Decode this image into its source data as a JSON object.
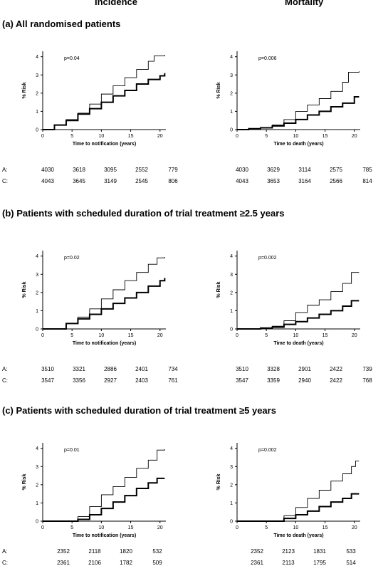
{
  "header": {
    "left": "Incidence",
    "right": "Mortality"
  },
  "sections": [
    {
      "label": "(a) All randomised patients"
    },
    {
      "label": "(b) Patients with scheduled duration of trial treatment ≥2.5 years"
    },
    {
      "label": "(c) Patients with scheduled duration of trial treatment ≥5 years"
    }
  ],
  "risk_labels": {
    "a": "A:",
    "c": "C:"
  },
  "risk_tables": [
    {
      "incidence": {
        "A": [
          "4030",
          "3618",
          "3095",
          "2552",
          "779"
        ],
        "C": [
          "4043",
          "3645",
          "3149",
          "2545",
          "806"
        ]
      },
      "mortality": {
        "A": [
          "4030",
          "3629",
          "3114",
          "2575",
          "785"
        ],
        "C": [
          "4043",
          "3653",
          "3164",
          "2566",
          "814"
        ]
      }
    },
    {
      "incidence": {
        "A": [
          "3510",
          "3321",
          "2886",
          "2401",
          "734"
        ],
        "C": [
          "3547",
          "3356",
          "2927",
          "2403",
          "761"
        ]
      },
      "mortality": {
        "A": [
          "3510",
          "3328",
          "2901",
          "2422",
          "739"
        ],
        "C": [
          "3547",
          "3359",
          "2940",
          "2422",
          "768"
        ]
      }
    },
    {
      "incidence": {
        "A": [
          "2352",
          "2118",
          "1820",
          "532"
        ],
        "C": [
          "2361",
          "2106",
          "1782",
          "509"
        ]
      },
      "mortality": {
        "A": [
          "2352",
          "2123",
          "1831",
          "533"
        ],
        "C": [
          "2361",
          "2113",
          "1795",
          "514"
        ]
      }
    }
  ],
  "chart_data": [
    {
      "type": "line",
      "panel": "a-incidence",
      "xlabel": "Time to notification (years)",
      "ylabel": "% Risk",
      "xlim": [
        0,
        21
      ],
      "ylim": [
        0,
        4.3
      ],
      "xticks": [
        0,
        5,
        10,
        15,
        20
      ],
      "yticks": [
        0,
        1,
        2,
        3,
        4
      ],
      "annotation": "p=0.04",
      "series": [
        {
          "style": "thin",
          "x": [
            0,
            2,
            4,
            6,
            8,
            10,
            12,
            14,
            16,
            18,
            19,
            20.8
          ],
          "y": [
            0,
            0.25,
            0.55,
            0.9,
            1.4,
            1.95,
            2.4,
            2.85,
            3.3,
            3.75,
            4.05,
            4.1
          ]
        },
        {
          "style": "thick",
          "x": [
            0,
            2,
            4,
            6,
            8,
            10,
            12,
            14,
            16,
            18,
            20,
            20.8
          ],
          "y": [
            0,
            0.25,
            0.5,
            0.85,
            1.15,
            1.5,
            1.85,
            2.15,
            2.5,
            2.75,
            2.95,
            3.1
          ]
        }
      ]
    },
    {
      "type": "line",
      "panel": "a-mortality",
      "xlabel": "Time to death (years)",
      "ylabel": "% Risk",
      "xlim": [
        0,
        21
      ],
      "ylim": [
        0,
        4.3
      ],
      "xticks": [
        0,
        5,
        10,
        15,
        20
      ],
      "yticks": [
        0,
        1,
        2,
        3,
        4
      ],
      "annotation": "p=0.006",
      "series": [
        {
          "style": "thin",
          "x": [
            0,
            2,
            4,
            6,
            8,
            10,
            12,
            14,
            16,
            18,
            19,
            20.8
          ],
          "y": [
            0,
            0.05,
            0.1,
            0.25,
            0.55,
            1.0,
            1.35,
            1.7,
            2.1,
            2.6,
            3.15,
            3.2
          ]
        },
        {
          "style": "thick",
          "x": [
            0,
            2,
            4,
            6,
            8,
            10,
            12,
            14,
            16,
            18,
            20,
            20.8
          ],
          "y": [
            0,
            0.05,
            0.1,
            0.2,
            0.35,
            0.55,
            0.8,
            1.0,
            1.25,
            1.45,
            1.8,
            1.8
          ]
        }
      ]
    },
    {
      "type": "line",
      "panel": "b-incidence",
      "xlabel": "Time to notification (years)",
      "ylabel": "% Risk",
      "xlim": [
        0,
        21
      ],
      "ylim": [
        0,
        4.3
      ],
      "xticks": [
        0,
        5,
        10,
        15,
        20
      ],
      "yticks": [
        0,
        1,
        2,
        3,
        4
      ],
      "annotation": "p=0.02",
      "series": [
        {
          "style": "thin",
          "x": [
            0,
            2.5,
            4,
            6,
            8,
            10,
            12,
            14,
            16,
            18,
            19.5,
            20.8
          ],
          "y": [
            0,
            0,
            0.3,
            0.65,
            1.1,
            1.65,
            2.15,
            2.65,
            3.1,
            3.55,
            3.9,
            3.95
          ]
        },
        {
          "style": "thick",
          "x": [
            0,
            2.5,
            4,
            6,
            8,
            10,
            12,
            14,
            16,
            18,
            20,
            20.8
          ],
          "y": [
            0,
            0,
            0.3,
            0.55,
            0.8,
            1.1,
            1.4,
            1.7,
            2.0,
            2.35,
            2.65,
            2.8
          ]
        }
      ]
    },
    {
      "type": "line",
      "panel": "b-mortality",
      "xlabel": "Time to death (years)",
      "ylabel": "% Risk",
      "xlim": [
        0,
        21
      ],
      "ylim": [
        0,
        4.3
      ],
      "xticks": [
        0,
        5,
        10,
        15,
        20
      ],
      "yticks": [
        0,
        1,
        2,
        3,
        4
      ],
      "annotation": "p=0.002",
      "series": [
        {
          "style": "thin",
          "x": [
            0,
            2.5,
            4,
            6,
            8,
            10,
            12,
            14,
            16,
            18,
            19.5,
            20.8
          ],
          "y": [
            0,
            0,
            0.05,
            0.15,
            0.45,
            0.9,
            1.3,
            1.6,
            2.05,
            2.5,
            3.1,
            3.1
          ]
        },
        {
          "style": "thick",
          "x": [
            0,
            2.5,
            4,
            6,
            8,
            10,
            12,
            14,
            16,
            18,
            19.5,
            20.8
          ],
          "y": [
            0,
            0,
            0.05,
            0.1,
            0.25,
            0.4,
            0.6,
            0.8,
            1.0,
            1.25,
            1.55,
            1.55
          ]
        }
      ]
    },
    {
      "type": "line",
      "panel": "c-incidence",
      "xlabel": "Time to notification (years)",
      "ylabel": "% Risk",
      "xlim": [
        0,
        21
      ],
      "ylim": [
        0,
        4.3
      ],
      "xticks": [
        0,
        5,
        10,
        15,
        20
      ],
      "yticks": [
        0,
        1,
        2,
        3,
        4
      ],
      "annotation": "p=0.01",
      "series": [
        {
          "style": "thin",
          "x": [
            0,
            5,
            6,
            8,
            10,
            12,
            14,
            16,
            18,
            19.5,
            20.8
          ],
          "y": [
            0,
            0,
            0.25,
            0.8,
            1.45,
            1.9,
            2.4,
            2.9,
            3.35,
            3.9,
            3.95
          ]
        },
        {
          "style": "thick",
          "x": [
            0,
            5,
            6,
            8,
            10,
            12,
            14,
            16,
            18,
            19.5,
            20.8
          ],
          "y": [
            0,
            0,
            0.1,
            0.35,
            0.7,
            1.05,
            1.4,
            1.8,
            2.1,
            2.35,
            2.35
          ]
        }
      ]
    },
    {
      "type": "line",
      "panel": "c-mortality",
      "xlabel": "Time to death (years)",
      "ylabel": "% Risk",
      "xlim": [
        0,
        21
      ],
      "ylim": [
        0,
        4.3
      ],
      "xticks": [
        0,
        5,
        10,
        15,
        20
      ],
      "yticks": [
        0,
        1,
        2,
        3,
        4
      ],
      "annotation": "p=0.002",
      "series": [
        {
          "style": "thin",
          "x": [
            0,
            7,
            8,
            10,
            12,
            14,
            16,
            18,
            19.5,
            20.2,
            20.8
          ],
          "y": [
            0,
            0,
            0.3,
            0.75,
            1.25,
            1.7,
            2.2,
            2.6,
            3.0,
            3.3,
            3.3
          ]
        },
        {
          "style": "thick",
          "x": [
            0,
            7,
            8,
            10,
            12,
            14,
            16,
            18,
            19.5,
            20.8
          ],
          "y": [
            0,
            0,
            0.15,
            0.35,
            0.55,
            0.8,
            1.05,
            1.25,
            1.5,
            1.5
          ]
        }
      ]
    }
  ]
}
